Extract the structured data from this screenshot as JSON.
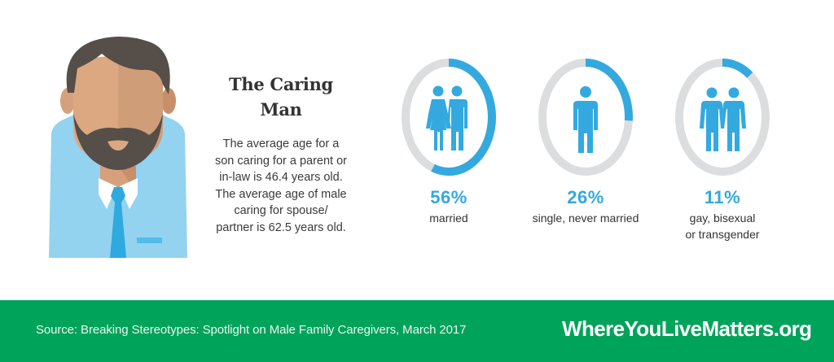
{
  "intro": {
    "title_line1": "The Caring",
    "title_line2": "Man",
    "body_lines": [
      "The average age for a",
      "son caring for a parent or",
      "in-law is 46.4 years old.",
      "The average age of male",
      "caring for spouse/",
      "partner is 62.5 years old."
    ]
  },
  "stats": [
    {
      "value": "56%",
      "label_lines": [
        "married"
      ],
      "percent": 56,
      "icon": "couple-man-woman-icon"
    },
    {
      "value": "26%",
      "label_lines": [
        "single, never married"
      ],
      "percent": 26,
      "icon": "single-man-icon"
    },
    {
      "value": "11%",
      "label_lines": [
        "gay, bisexual",
        "or transgender"
      ],
      "percent": 11,
      "icon": "two-men-icon"
    }
  ],
  "colors": {
    "accent_blue": "#33a9e0",
    "ring_gray": "#dcdddf",
    "footer_green": "#00a35a",
    "text_dark": "#333333"
  },
  "footer": {
    "source": "Source: Breaking Stereotypes: Spotlight on Male Family Caregivers, March 2017",
    "brand": "WhereYouLiveMatters.org"
  }
}
